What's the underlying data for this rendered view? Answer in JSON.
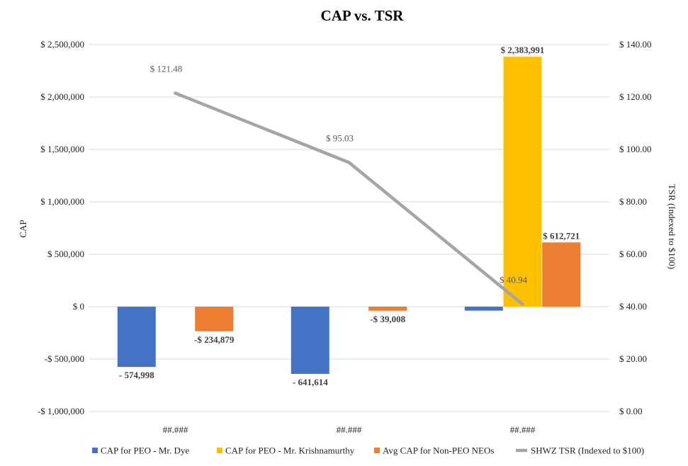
{
  "chart_data": {
    "type": "bar",
    "title": "CAP vs. TSR",
    "ylabel": "CAP",
    "y2label": "TSR (Indexed to $100)",
    "xlabel": "",
    "categories": [
      "##.###",
      "##.###",
      "##.###"
    ],
    "ylim": [
      -1000000,
      2500000
    ],
    "y2lim": [
      0,
      140
    ],
    "yticks": [
      {
        "value": 2500000,
        "label": "$ 2,500,000"
      },
      {
        "value": 2000000,
        "label": "$ 2,000,000"
      },
      {
        "value": 1500000,
        "label": "$ 1,500,000"
      },
      {
        "value": 1000000,
        "label": "$ 1,000,000"
      },
      {
        "value": 500000,
        "label": "$ 500,000"
      },
      {
        "value": 0,
        "label": "$ 0"
      },
      {
        "value": -500000,
        "label": "-$ 500,000"
      },
      {
        "value": -1000000,
        "label": "-$ 1,000,000"
      }
    ],
    "y2ticks": [
      {
        "value": 140,
        "label": "$ 140.00"
      },
      {
        "value": 120,
        "label": "$ 120.00"
      },
      {
        "value": 100,
        "label": "$ 100.00"
      },
      {
        "value": 80,
        "label": "$ 80.00"
      },
      {
        "value": 60,
        "label": "$ 60.00"
      },
      {
        "value": 40,
        "label": "$ 40.00"
      },
      {
        "value": 20,
        "label": "$ 20.00"
      },
      {
        "value": 0,
        "label": "$ 0.00"
      }
    ],
    "grid": true,
    "legend_position": "bottom",
    "series": [
      {
        "name": "CAP for PEO - Mr. Dye",
        "type": "bar",
        "axis": "left",
        "color": "#4472C4",
        "values": [
          -574998,
          -641614,
          -38000
        ],
        "labels": [
          "- 574,998",
          "- 641,614",
          ""
        ]
      },
      {
        "name": "CAP for PEO - Mr. Krishnamurthy",
        "type": "bar",
        "axis": "left",
        "color": "#FFC000",
        "values": [
          null,
          null,
          2383991
        ],
        "labels": [
          "",
          "",
          "$ 2,383,991"
        ]
      },
      {
        "name": "Avg CAP for Non-PEO NEOs",
        "type": "bar",
        "axis": "left",
        "color": "#ED7D31",
        "values": [
          -234879,
          -39008,
          612721
        ],
        "labels": [
          "-$ 234,879",
          "-$ 39,008",
          "$ 612,721"
        ]
      },
      {
        "name": "SHWZ TSR (Indexed to $100)",
        "type": "line",
        "axis": "right",
        "color": "#A5A5A5",
        "values": [
          121.48,
          95.03,
          40.94
        ],
        "labels": [
          "$ 121.48",
          "$ 95.03",
          "$ 40.94"
        ]
      }
    ]
  }
}
